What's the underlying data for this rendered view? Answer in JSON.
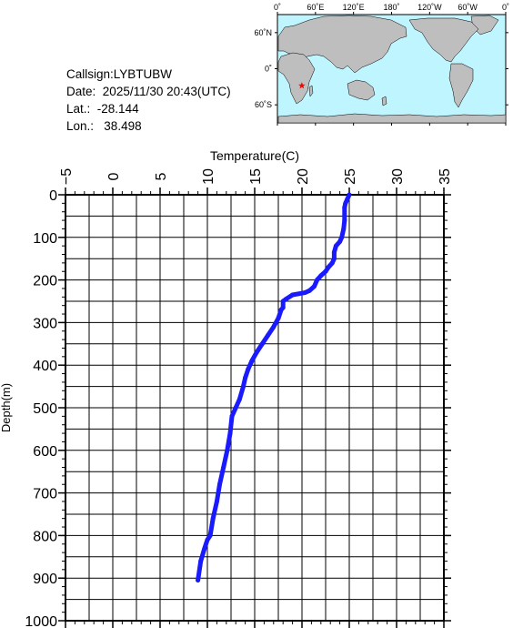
{
  "station": {
    "callsign_label": "Callsign:",
    "callsign": "LYBTUBW",
    "date_label": "Date:",
    "date": "2025/11/30 20:43(UTC)",
    "lat_label": "Lat.:",
    "lat": "-28.144",
    "lon_label": "Lon.:",
    "lon": "38.498"
  },
  "map": {
    "lon_ticks": [
      "0˚",
      "60˚E",
      "120˚E",
      "180˚",
      "120˚W",
      "60˚W",
      "0˚"
    ],
    "lat_ticks": [
      "60˚N",
      "0˚",
      "60˚S"
    ],
    "marker": {
      "lat": -28.144,
      "lon": 38.498,
      "color": "#ff0000"
    },
    "ocean_color": "#bff5ff",
    "land_color": "#bebebe"
  },
  "chart_data": {
    "type": "line",
    "xlabel": "Temperature(C)",
    "ylabel": "Depth(m)",
    "xlim": [
      -5,
      35
    ],
    "ylim": [
      0,
      1000
    ],
    "x_ticks": [
      -5,
      0,
      5,
      10,
      15,
      20,
      25,
      30,
      35
    ],
    "y_ticks": [
      0,
      100,
      200,
      300,
      400,
      500,
      600,
      700,
      800,
      900,
      1000
    ],
    "grid": true,
    "line_color": "#1a1aff",
    "series": [
      {
        "x": [
          25.0,
          24.8,
          24.6,
          24.5,
          24.5,
          24.4,
          24.2,
          24.0,
          23.6,
          23.4,
          23.4,
          23.2,
          22.8,
          22.5,
          22.0,
          21.6,
          21.3,
          20.8,
          20.3,
          19.0,
          18.3,
          18.0,
          18.0,
          17.8,
          17.5,
          17.0,
          16.4,
          15.8,
          15.2,
          14.7,
          14.3,
          14.0,
          13.8,
          13.4,
          13.0,
          12.6,
          12.4,
          12.1,
          11.7,
          11.3,
          11.0,
          10.6,
          10.3,
          10.0,
          9.7,
          9.3,
          9.0
        ],
        "y": [
          0,
          10,
          20,
          30,
          60,
          80,
          100,
          110,
          120,
          135,
          150,
          160,
          170,
          180,
          190,
          200,
          215,
          225,
          230,
          235,
          245,
          250,
          265,
          270,
          290,
          310,
          330,
          350,
          370,
          390,
          410,
          430,
          450,
          480,
          500,
          520,
          560,
          600,
          640,
          680,
          720,
          760,
          800,
          810,
          830,
          860,
          905
        ]
      }
    ]
  }
}
